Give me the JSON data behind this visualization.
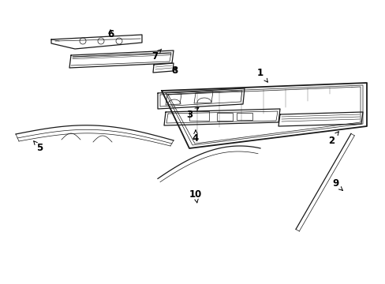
{
  "background_color": "#ffffff",
  "line_color": "#1a1a1a",
  "figsize": [
    4.89,
    3.6
  ],
  "dpi": 100,
  "lw_main": 0.9,
  "lw_thin": 0.5,
  "lw_thick": 1.3,
  "label_fontsize": 8.5
}
